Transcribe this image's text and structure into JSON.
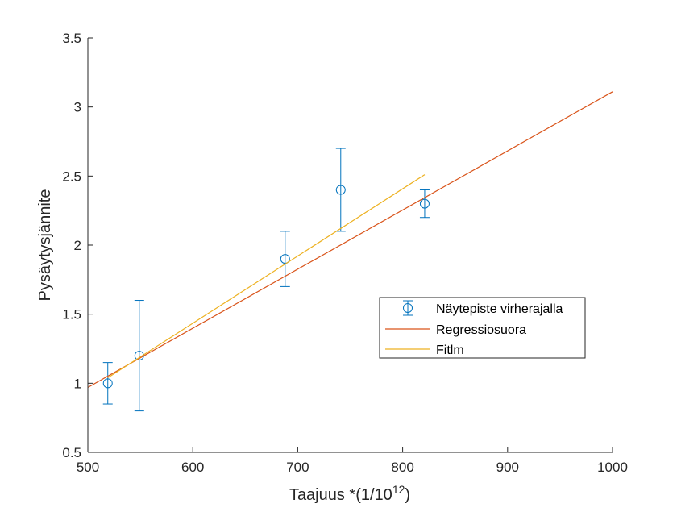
{
  "chart_data": {
    "type": "scatter",
    "xlabel": "Taajuus *(1/10",
    "xlabel_superscript": "12",
    "xlabel_suffix": ")",
    "ylabel": "Pysäytysjännite",
    "xlim": [
      500,
      1000
    ],
    "ylim": [
      0.5,
      3.5
    ],
    "x_ticks": [
      500,
      600,
      700,
      800,
      900,
      1000
    ],
    "y_ticks": [
      0.5,
      1,
      1.5,
      2,
      2.5,
      3,
      3.5
    ],
    "x_tick_labels": [
      "500",
      "600",
      "700",
      "800",
      "900",
      "1000"
    ],
    "y_tick_labels": [
      "0.5",
      "1",
      "1.5",
      "2",
      "2.5",
      "3",
      "3.5"
    ],
    "grid": false,
    "legend_position": "right-middle",
    "series": [
      {
        "name": "Näytepiste virherajalla",
        "kind": "errorbar",
        "color": "#0072BD",
        "points": [
          {
            "x": 519,
            "y": 1.0,
            "err": 0.15
          },
          {
            "x": 549,
            "y": 1.2,
            "err": 0.4
          },
          {
            "x": 688,
            "y": 1.9,
            "err": 0.2
          },
          {
            "x": 741,
            "y": 2.4,
            "err": 0.3
          },
          {
            "x": 821,
            "y": 2.3,
            "err": 0.1
          }
        ]
      },
      {
        "name": "Regressiosuora",
        "kind": "line",
        "color": "#D95319",
        "points": [
          {
            "x": 500,
            "y": 0.97
          },
          {
            "x": 1000,
            "y": 3.11
          }
        ]
      },
      {
        "name": "Fitlm",
        "kind": "line",
        "color": "#EDB120",
        "points": [
          {
            "x": 519,
            "y": 1.04
          },
          {
            "x": 821,
            "y": 2.51
          }
        ]
      }
    ]
  }
}
